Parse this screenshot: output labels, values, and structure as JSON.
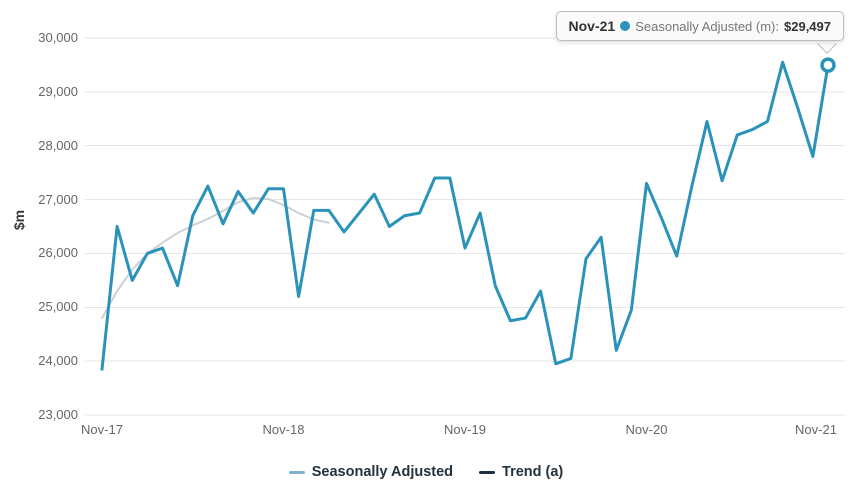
{
  "chart": {
    "y_axis_title": "$m",
    "tooltip": {
      "date": "Nov-21",
      "series_label": "Seasonally Adjusted (m):",
      "value": "$29,497",
      "dot_color": "#2b93ba"
    },
    "legend": {
      "items": [
        {
          "label": "Seasonally Adjusted",
          "swatch_color": "#7fb0cd"
        },
        {
          "label": "Trend (a)",
          "swatch_color": "#1e3040"
        }
      ]
    }
  },
  "chart_data": {
    "type": "line",
    "title": "",
    "xlabel": "",
    "ylabel": "$m",
    "ylim": [
      23000,
      30000
    ],
    "grid": "horizontal",
    "legend_position": "bottom",
    "x": [
      "Nov-17",
      "Dec-17",
      "Jan-18",
      "Feb-18",
      "Mar-18",
      "Apr-18",
      "May-18",
      "Jun-18",
      "Jul-18",
      "Aug-18",
      "Sep-18",
      "Oct-18",
      "Nov-18",
      "Dec-18",
      "Jan-19",
      "Feb-19",
      "Mar-19",
      "Apr-19",
      "May-19",
      "Jun-19",
      "Jul-19",
      "Aug-19",
      "Sep-19",
      "Oct-19",
      "Nov-19",
      "Dec-19",
      "Jan-20",
      "Feb-20",
      "Mar-20",
      "Apr-20",
      "May-20",
      "Jun-20",
      "Jul-20",
      "Aug-20",
      "Sep-20",
      "Oct-20",
      "Nov-20",
      "Dec-20",
      "Jan-21",
      "Feb-21",
      "Mar-21",
      "Apr-21",
      "May-21",
      "Jun-21",
      "Jul-21",
      "Aug-21",
      "Sep-21",
      "Oct-21",
      "Nov-21"
    ],
    "y_ticks": [
      {
        "value": 23000,
        "label": "23,000"
      },
      {
        "value": 24000,
        "label": "24,000"
      },
      {
        "value": 25000,
        "label": "25,000"
      },
      {
        "value": 26000,
        "label": "26,000"
      },
      {
        "value": 27000,
        "label": "27,000"
      },
      {
        "value": 28000,
        "label": "28,000"
      },
      {
        "value": 29000,
        "label": "29,000"
      },
      {
        "value": 30000,
        "label": "30,000"
      }
    ],
    "x_ticks": [
      {
        "index": 0,
        "label": "Nov-17"
      },
      {
        "index": 12,
        "label": "Nov-18"
      },
      {
        "index": 24,
        "label": "Nov-19"
      },
      {
        "index": 36,
        "label": "Nov-20"
      },
      {
        "index": 48,
        "label": "Nov-21"
      }
    ],
    "series": [
      {
        "name": "Seasonally Adjusted",
        "color": "#2b93ba",
        "line_width": 3,
        "values": [
          23850,
          26500,
          25500,
          26000,
          26100,
          25400,
          26700,
          27250,
          26550,
          27150,
          26750,
          27200,
          27200,
          25200,
          26800,
          26800,
          26400,
          26750,
          27100,
          26500,
          26700,
          26750,
          27400,
          27400,
          26100,
          26750,
          25400,
          24750,
          24800,
          25300,
          23950,
          24050,
          25900,
          26300,
          24200,
          24950,
          27300,
          26650,
          25950,
          27250,
          28450,
          27350,
          28200,
          28300,
          28450,
          29550,
          28700,
          27800,
          29497
        ],
        "marker_last_point": true
      },
      {
        "name": "Trend (a)",
        "color": "#ccd1d6",
        "line_width": 2,
        "values": [
          24800,
          25300,
          25700,
          26000,
          26200,
          26380,
          26520,
          26640,
          26790,
          26950,
          27030,
          27010,
          26900,
          26750,
          26630,
          26570
        ],
        "marker_last_point": false
      }
    ]
  }
}
